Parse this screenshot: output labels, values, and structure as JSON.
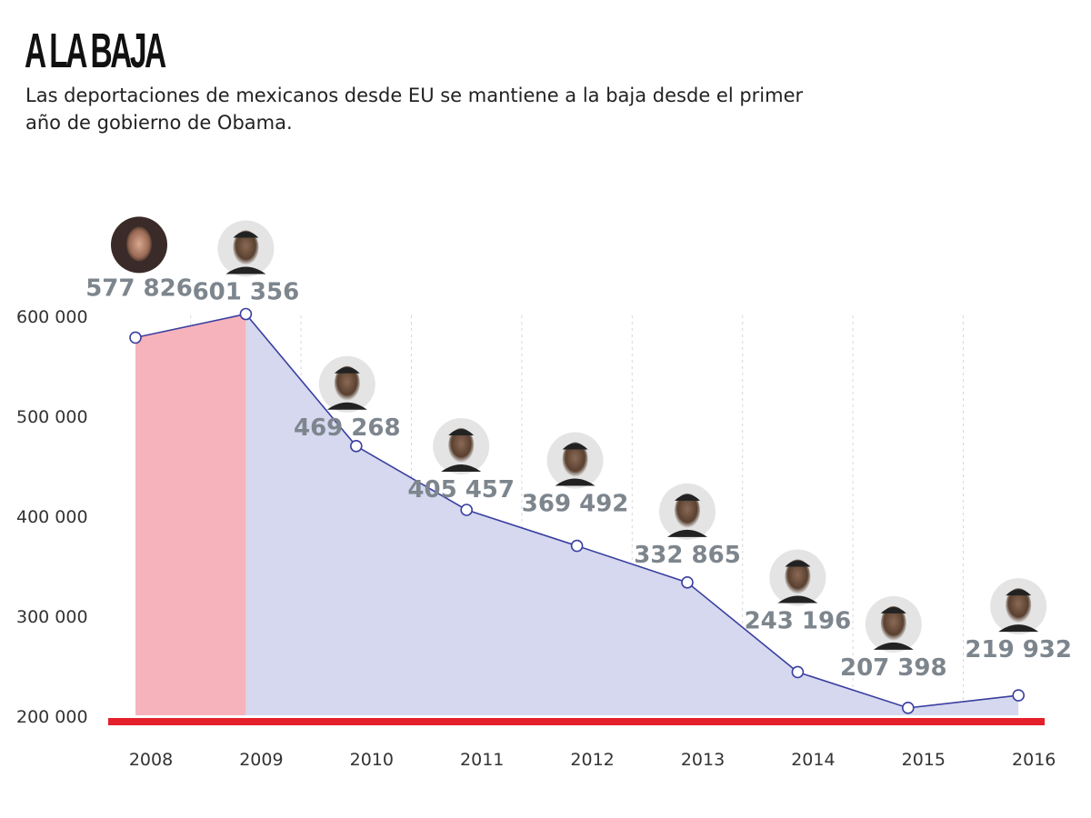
{
  "title": "A LA BAJA",
  "subtitle": "Las deportaciones de mexicanos desde EU se mantiene a la baja desde el primer año de gobierno de Obama.",
  "chart_data": {
    "type": "area",
    "title": "A LA BAJA",
    "subtitle": "Las deportaciones de mexicanos desde EU se mantiene a la baja desde el primer año de gobierno de Obama.",
    "categories": [
      "2008",
      "2009",
      "2010",
      "2011",
      "2012",
      "2013",
      "2014",
      "2015",
      "2016"
    ],
    "values": [
      577826,
      601356,
      469268,
      405457,
      369492,
      332865,
      243196,
      207398,
      219932
    ],
    "data_labels": [
      "577 826",
      "601 356",
      "469 268",
      "405 457",
      "369 492",
      "332 865",
      "243 196",
      "207 398",
      "219 932"
    ],
    "portraits": [
      "bush",
      "obama",
      "obama",
      "obama",
      "obama",
      "obama",
      "obama",
      "obama",
      "obama"
    ],
    "ylim": [
      200000,
      640000
    ],
    "yticks": [
      200000,
      300000,
      400000,
      500000,
      600000
    ],
    "ytick_labels": [
      "200 000",
      "300 000",
      "400 000",
      "500 000",
      "600 000"
    ],
    "xlabel": "",
    "ylabel": "",
    "grid": "vertical dashed",
    "colors": {
      "bush_fill": "#f7b3bb",
      "obama_fill": "#d5d8ee",
      "line": "#3a3fa0",
      "baseline": "#e3202b",
      "label": "#7d858d"
    }
  }
}
